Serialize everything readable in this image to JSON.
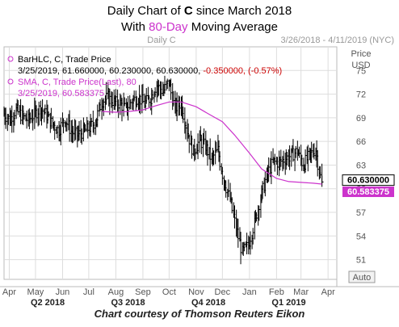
{
  "header": {
    "title_line1_pre": "Daily Chart of ",
    "title_ticker": "C",
    "title_line1_post": " since March 2018",
    "title_line2_pre": "With ",
    "title_accent": "80-Day",
    "title_line2_post": " Moving Average"
  },
  "chart_header": {
    "label": "Daily C",
    "date_range": "3/26/2018 - 4/11/2019 (NYC)"
  },
  "legend": {
    "bar_title": "BarHLC, C, Trade Price",
    "bar_values": "3/25/2019, 61.660000, 60.230000, 60.630000,",
    "bar_change": "-0.350000, (-0.57%)",
    "sma_title": "SMA, C, Trade Price(Last), 80",
    "sma_value": "3/25/2019, 60.583375"
  },
  "y_axis": {
    "title": "Price",
    "unit": "USD",
    "auto_label": "Auto"
  },
  "price_tags": {
    "last_price": "60.630000",
    "sma_value": "60.583375"
  },
  "footer": {
    "credit": "Chart courtesy of Thomson Reuters Eikon"
  },
  "colors": {
    "price_bars": "#000000",
    "sma_line": "#cc33cc",
    "grid": "#dddddd",
    "accent": "#cc33cc",
    "change_negative": "#cc0000"
  },
  "chart_data": {
    "type": "line",
    "title": "Daily Chart of C since March 2018",
    "subtitle": "With 80-Day Moving Average",
    "xlabel": "",
    "ylabel": "Price USD",
    "ylim": [
      48.5,
      78
    ],
    "y_ticks": [
      51,
      54,
      57,
      60,
      63,
      66,
      69,
      72,
      75
    ],
    "x_ticks": [
      "Apr",
      "May",
      "Jun",
      "Jul",
      "Aug",
      "Sep",
      "Oct",
      "Nov",
      "Dec",
      "Jan",
      "Feb",
      "Mar",
      "Apr"
    ],
    "x_tick_dates": [
      "2018-04-01",
      "2018-05-01",
      "2018-06-01",
      "2018-07-01",
      "2018-08-01",
      "2018-09-01",
      "2018-10-01",
      "2018-11-01",
      "2018-12-01",
      "2019-01-01",
      "2019-02-01",
      "2019-03-01",
      "2019-04-01"
    ],
    "quarters": [
      {
        "label": "Q2 2018",
        "date": "2018-05-15"
      },
      {
        "label": "Q3 2018",
        "date": "2018-08-15"
      },
      {
        "label": "Q4 2018",
        "date": "2018-11-15"
      },
      {
        "label": "Q1 2019",
        "date": "2019-02-15"
      }
    ],
    "xlim": [
      "2018-03-26",
      "2019-04-11"
    ],
    "grid": true,
    "series": [
      {
        "name": "BarHLC, C, Trade Price",
        "style": "ohlc-bars",
        "points": [
          {
            "date": "2018-03-26",
            "close": 69.5
          },
          {
            "date": "2018-04-02",
            "close": 68.8
          },
          {
            "date": "2018-04-09",
            "close": 70.0
          },
          {
            "date": "2018-04-16",
            "close": 69.2
          },
          {
            "date": "2018-04-23",
            "close": 68.7
          },
          {
            "date": "2018-04-30",
            "close": 69.4
          },
          {
            "date": "2018-05-07",
            "close": 70.3
          },
          {
            "date": "2018-05-14",
            "close": 69.3
          },
          {
            "date": "2018-05-21",
            "close": 68.2
          },
          {
            "date": "2018-05-28",
            "close": 67.4
          },
          {
            "date": "2018-06-04",
            "close": 68.9
          },
          {
            "date": "2018-06-11",
            "close": 67.3
          },
          {
            "date": "2018-06-18",
            "close": 66.8
          },
          {
            "date": "2018-06-25",
            "close": 67.2
          },
          {
            "date": "2018-07-02",
            "close": 67.7
          },
          {
            "date": "2018-07-09",
            "close": 68.5
          },
          {
            "date": "2018-07-16",
            "close": 71.0
          },
          {
            "date": "2018-07-23",
            "close": 71.6
          },
          {
            "date": "2018-07-30",
            "close": 71.0
          },
          {
            "date": "2018-08-06",
            "close": 70.8
          },
          {
            "date": "2018-08-13",
            "close": 70.1
          },
          {
            "date": "2018-08-20",
            "close": 71.2
          },
          {
            "date": "2018-08-27",
            "close": 71.6
          },
          {
            "date": "2018-09-03",
            "close": 70.8
          },
          {
            "date": "2018-09-10",
            "close": 71.5
          },
          {
            "date": "2018-09-17",
            "close": 73.2
          },
          {
            "date": "2018-09-24",
            "close": 72.3
          },
          {
            "date": "2018-10-01",
            "close": 73.5
          },
          {
            "date": "2018-10-08",
            "close": 70.2
          },
          {
            "date": "2018-10-15",
            "close": 70.9
          },
          {
            "date": "2018-10-22",
            "close": 67.4
          },
          {
            "date": "2018-10-29",
            "close": 64.6
          },
          {
            "date": "2018-11-05",
            "close": 66.1
          },
          {
            "date": "2018-11-12",
            "close": 65.4
          },
          {
            "date": "2018-11-19",
            "close": 63.7
          },
          {
            "date": "2018-11-26",
            "close": 64.9
          },
          {
            "date": "2018-12-03",
            "close": 61.1
          },
          {
            "date": "2018-12-10",
            "close": 58.7
          },
          {
            "date": "2018-12-17",
            "close": 55.1
          },
          {
            "date": "2018-12-24",
            "close": 51.9
          },
          {
            "date": "2018-12-31",
            "close": 52.8
          },
          {
            "date": "2019-01-07",
            "close": 55.6
          },
          {
            "date": "2019-01-14",
            "close": 58.8
          },
          {
            "date": "2019-01-21",
            "close": 61.6
          },
          {
            "date": "2019-01-28",
            "close": 63.4
          },
          {
            "date": "2019-02-04",
            "close": 63.3
          },
          {
            "date": "2019-02-11",
            "close": 63.8
          },
          {
            "date": "2019-02-18",
            "close": 64.2
          },
          {
            "date": "2019-02-25",
            "close": 64.8
          },
          {
            "date": "2019-03-04",
            "close": 63.0
          },
          {
            "date": "2019-03-11",
            "close": 64.2
          },
          {
            "date": "2019-03-18",
            "close": 65.0
          },
          {
            "date": "2019-03-25",
            "close": 60.63
          }
        ]
      },
      {
        "name": "SMA, C, Trade Price(Last), 80",
        "style": "line",
        "points": [
          {
            "date": "2018-07-16",
            "value": 69.8
          },
          {
            "date": "2018-08-01",
            "value": 69.7
          },
          {
            "date": "2018-08-15",
            "value": 69.8
          },
          {
            "date": "2018-09-01",
            "value": 70.0
          },
          {
            "date": "2018-09-15",
            "value": 70.5
          },
          {
            "date": "2018-10-01",
            "value": 71.0
          },
          {
            "date": "2018-10-15",
            "value": 71.0
          },
          {
            "date": "2018-11-01",
            "value": 70.4
          },
          {
            "date": "2018-11-15",
            "value": 69.5
          },
          {
            "date": "2018-12-01",
            "value": 68.5
          },
          {
            "date": "2018-12-15",
            "value": 66.8
          },
          {
            "date": "2019-01-01",
            "value": 64.5
          },
          {
            "date": "2019-01-15",
            "value": 62.5
          },
          {
            "date": "2019-02-01",
            "value": 61.3
          },
          {
            "date": "2019-02-15",
            "value": 60.9
          },
          {
            "date": "2019-03-01",
            "value": 60.8
          },
          {
            "date": "2019-03-15",
            "value": 60.7
          },
          {
            "date": "2019-03-25",
            "value": 60.583375
          }
        ]
      }
    ]
  }
}
